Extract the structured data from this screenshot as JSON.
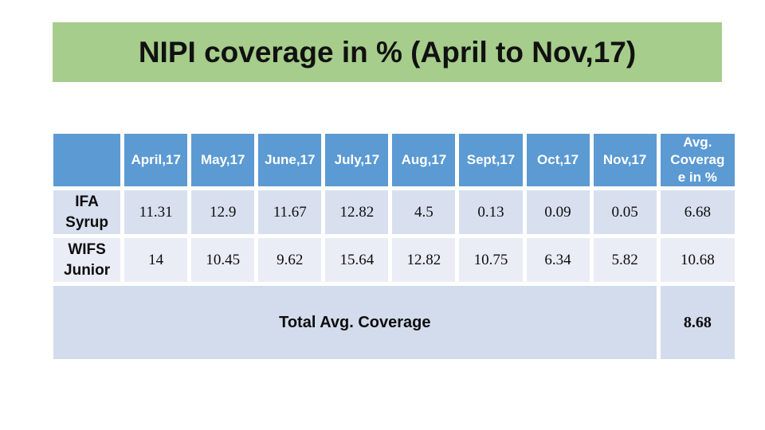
{
  "slide": {
    "title": "NIPI coverage in % (April to Nov,17)"
  },
  "table": {
    "corner_label": "",
    "columns": [
      "April,17",
      "May,17",
      "June,17",
      "July,17",
      "Aug,17",
      "Sept,17",
      "Oct,17",
      "Nov,17",
      "Avg.\nCoverag\ne in %"
    ],
    "rows": [
      {
        "label": "IFA\nSyrup",
        "values": [
          "11.31",
          "12.9",
          "11.67",
          "12.82",
          "4.5",
          "0.13",
          "0.09",
          "0.05",
          "6.68"
        ]
      },
      {
        "label": "WIFS\nJunior",
        "values": [
          "14",
          "10.45",
          "9.62",
          "15.64",
          "12.82",
          "10.75",
          "6.34",
          "5.82",
          "10.68"
        ]
      }
    ],
    "footer": {
      "label": "Total Avg. Coverage",
      "value": "8.68"
    }
  },
  "colors": {
    "title_band_green": "#A6CD8B",
    "header_blue": "#5B9AD3",
    "row_odd_bg": "#D8E0EF",
    "row_even_bg": "#EAEDF6",
    "footer_bg": "#D3DCEC",
    "title_text": "#111111",
    "header_text": "#FFFFFF",
    "body_text": "#0D0D0D"
  }
}
